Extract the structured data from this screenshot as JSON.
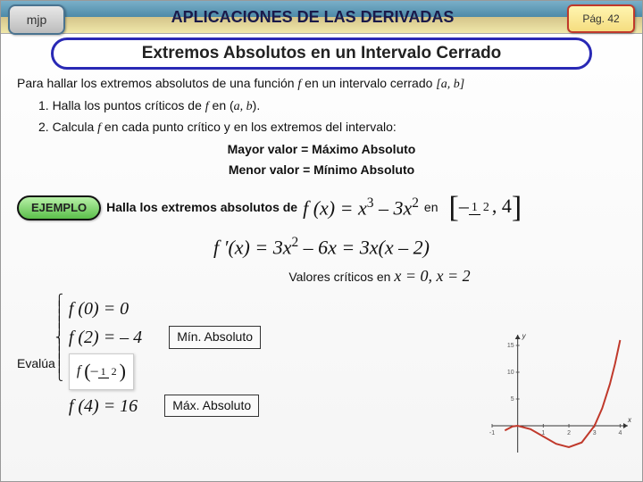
{
  "header": {
    "left_badge": "mjp",
    "title": "APLICACIONES DE LAS DERIVADAS",
    "page_badge": "Pág. 42"
  },
  "subtitle": "Extremos Absolutos en un Intervalo Cerrado",
  "intro": {
    "text": "Para hallar los extremos absolutos de una función ",
    "fvar": "f",
    "text2": " en un intervalo cerrado ",
    "interval": "[a, b]"
  },
  "steps": {
    "s1a": "1. Halla los puntos críticos de ",
    "s1f": "f",
    "s1b": "  en (",
    "s1c": "a, b",
    "s1d": ").",
    "s2a": "2. Calcula ",
    "s2f": "f",
    "s2b": "  en cada punto crítico y en los extremos del intervalo:"
  },
  "summary": {
    "max": "Mayor valor = Máximo Absoluto",
    "min": "Menor valor = Mínimo Absoluto"
  },
  "example": {
    "badge": "EJEMPLO",
    "prompt": "Halla los extremos absolutos de ",
    "func_lhs": "f (x) = x",
    "func_exp1": "3",
    "func_mid": " – 3x",
    "func_exp2": "2",
    "in_word": "  en"
  },
  "interval_display": {
    "lbr": "[",
    "neg": "–",
    "num": "1",
    "den": "2",
    "comma": ", 4",
    "rbr": "]"
  },
  "derivative": {
    "lhs": "f ′(x) = 3x",
    "e1": "2",
    "mid": " – 6x = 3x(x – 2)"
  },
  "critical": {
    "label": "Valores críticos en ",
    "vals": "x = 0, x = 2"
  },
  "eval": {
    "label": "Evalúa",
    "r1": "f (0) = 0",
    "r2": "f (2) = – 4",
    "r2_box": "Mín. Absoluto",
    "r3_inner_l": "f",
    "r3_inner_neg": "–",
    "r3_inner_num": "1",
    "r3_inner_den": "2",
    "r4": "f (4) = 16",
    "r4_box": "Máx. Absoluto"
  },
  "graph": {
    "curve_color": "#c0392b",
    "axis_color": "#333333",
    "tick_color": "#555555",
    "x_ticks": [
      "-1",
      "1",
      "2",
      "3",
      "4"
    ],
    "y_ticks": [
      "5",
      "10",
      "15"
    ],
    "x_label": "x",
    "y_label": "y",
    "points": [
      {
        "x": -0.5,
        "y": -0.875
      },
      {
        "x": -0.2,
        "y": -0.128
      },
      {
        "x": 0.0,
        "y": 0.0
      },
      {
        "x": 0.5,
        "y": -0.625
      },
      {
        "x": 1.0,
        "y": -2.0
      },
      {
        "x": 1.5,
        "y": -3.375
      },
      {
        "x": 2.0,
        "y": -4.0
      },
      {
        "x": 2.5,
        "y": -3.125
      },
      {
        "x": 3.0,
        "y": 0.0
      },
      {
        "x": 3.3,
        "y": 3.267
      },
      {
        "x": 3.6,
        "y": 7.776
      },
      {
        "x": 3.8,
        "y": 11.552
      },
      {
        "x": 4.0,
        "y": 16.0
      }
    ],
    "xlim": [
      -1,
      4.3
    ],
    "ylim": [
      -5,
      17
    ]
  }
}
